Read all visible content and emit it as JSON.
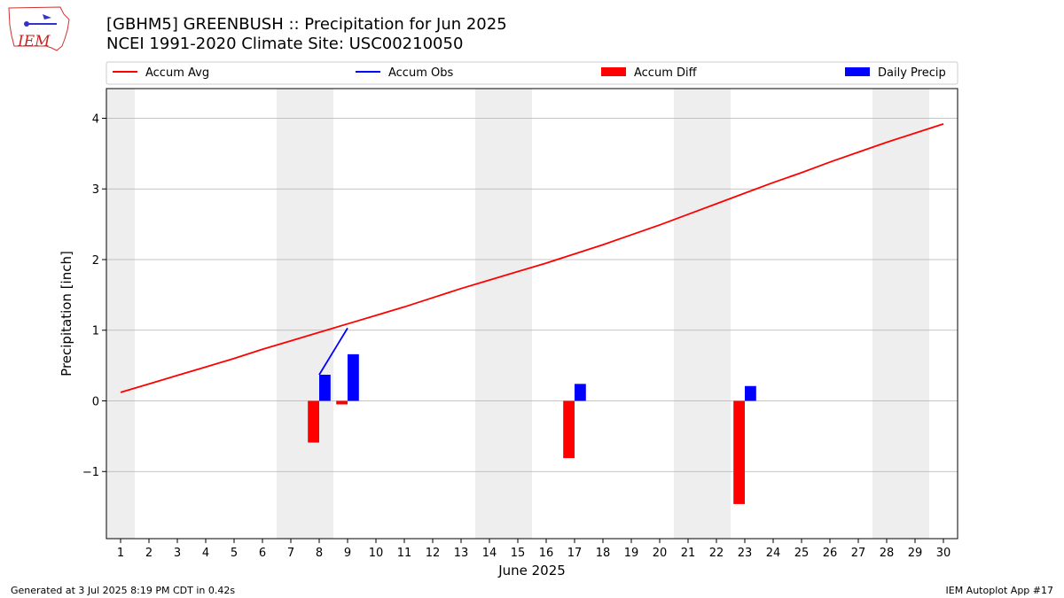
{
  "header": {
    "title_line1": "[GBHM5] GREENBUSH :: Precipitation for Jun 2025",
    "title_line2": "NCEI 1991-2020 Climate Site: USC00210050",
    "logo_text": "IEM"
  },
  "footer": {
    "left": "Generated at 3 Jul 2025 8:19 PM CDT in 0.42s",
    "right": "IEM Autoplot App #17"
  },
  "colors": {
    "accum_avg": "#ff0000",
    "accum_obs": "#0000ff",
    "accum_diff": "#ff0000",
    "daily_precip": "#0000ff",
    "weekend_shade": "#eeeeee",
    "grid": "#b0b0b0"
  },
  "chart_data": {
    "type": "bar",
    "xlabel": "June 2025",
    "ylabel": "Precipitation [inch]",
    "xlim": [
      0.5,
      30.5
    ],
    "ylim": [
      -1.95,
      4.42
    ],
    "grid": "horizontal",
    "legend_placement": "top",
    "x": [
      1,
      2,
      3,
      4,
      5,
      6,
      7,
      8,
      9,
      10,
      11,
      12,
      13,
      14,
      15,
      16,
      17,
      18,
      19,
      20,
      21,
      22,
      23,
      24,
      25,
      26,
      27,
      28,
      29,
      30
    ],
    "yticks": [
      -1,
      0,
      1,
      2,
      3,
      4
    ],
    "ytick_labels": [
      "−1",
      "0",
      "1",
      "2",
      "3",
      "4"
    ],
    "weekend_days": [
      1,
      7,
      8,
      14,
      15,
      21,
      22,
      28,
      29
    ],
    "series": [
      {
        "name": "Accum Avg",
        "kind": "line",
        "x": [
          1,
          2,
          3,
          4,
          5,
          6,
          7,
          8,
          9,
          10,
          11,
          12,
          13,
          14,
          15,
          16,
          17,
          18,
          19,
          20,
          21,
          22,
          23,
          24,
          25,
          26,
          27,
          28,
          29,
          30
        ],
        "values": [
          0.12,
          0.24,
          0.36,
          0.48,
          0.6,
          0.73,
          0.85,
          0.97,
          1.09,
          1.21,
          1.33,
          1.46,
          1.59,
          1.71,
          1.83,
          1.95,
          2.08,
          2.21,
          2.35,
          2.49,
          2.64,
          2.79,
          2.94,
          3.09,
          3.23,
          3.38,
          3.52,
          3.66,
          3.79,
          3.92
        ]
      },
      {
        "name": "Accum Obs",
        "kind": "line",
        "x": [
          8,
          9
        ],
        "values": [
          0.37,
          1.03
        ]
      },
      {
        "name": "Accum Diff",
        "kind": "bar",
        "x": [
          8,
          9,
          17,
          23
        ],
        "values": [
          -0.59,
          -0.05,
          -0.81,
          -1.46
        ]
      },
      {
        "name": "Daily Precip",
        "kind": "bar",
        "x": [
          8,
          9,
          17,
          23
        ],
        "values": [
          0.37,
          0.66,
          0.24,
          0.21
        ]
      }
    ]
  }
}
